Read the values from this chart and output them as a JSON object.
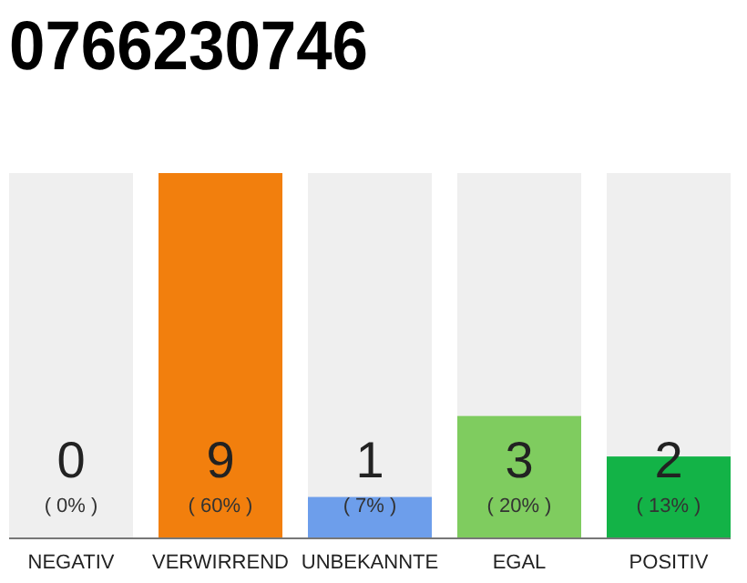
{
  "chart_data": {
    "type": "bar",
    "title": "0766230746",
    "categories": [
      "NEGATIV",
      "VERWIRREND",
      "UNBEKANNTE",
      "EGAL",
      "POSITIV"
    ],
    "values": [
      0,
      9,
      1,
      3,
      2
    ],
    "colors": [
      "#999999",
      "#f27f0d",
      "#6d9eeb",
      "#7fcc5f",
      "#13b347"
    ],
    "tick_labels": "x",
    "value_labels": [
      "0",
      "9",
      "1",
      "3",
      "2"
    ],
    "bands": [
      {
        "axis": "x",
        "from": "NEGATIV",
        "to": "NEGATIV",
        "color": "#efefef"
      },
      {
        "axis": "x",
        "from": "UNBEKANNTE",
        "to": "UNBEKANNTE",
        "color": "#efefef"
      },
      {
        "axis": "x",
        "from": "EGAL",
        "to": "EGAL",
        "color": "#efefef"
      },
      {
        "axis": "x",
        "from": "POSITIV",
        "to": "POSITIV",
        "color": "#efefef"
      }
    ],
    "annotations": [
      "( 0% )",
      "( 60% )",
      "( 7% )",
      "( 20% )",
      "( 13% )"
    ]
  }
}
